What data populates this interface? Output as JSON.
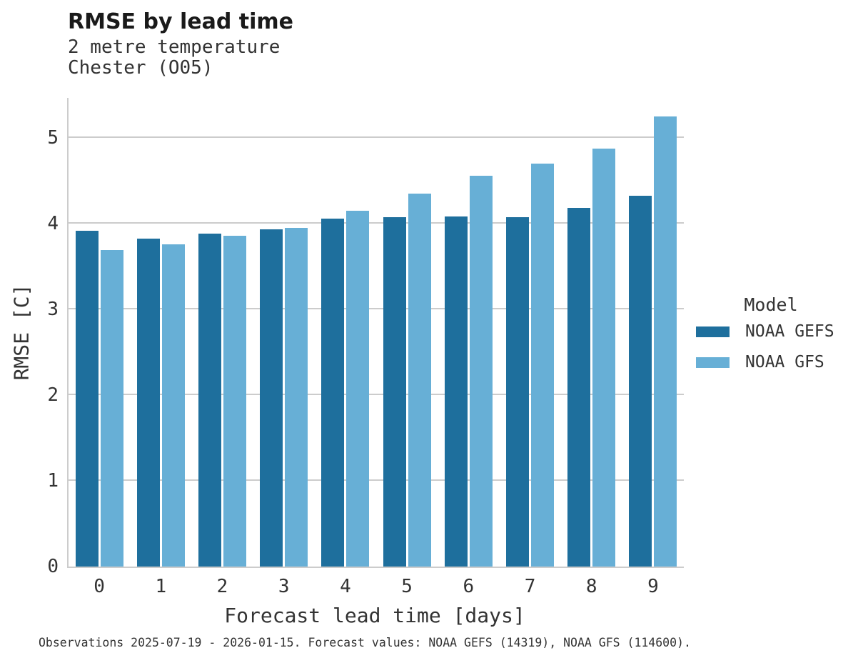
{
  "header": {
    "title": "RMSE by lead time",
    "subtitle_line1": "2 metre temperature",
    "subtitle_line2": "Chester (O05)"
  },
  "legend": {
    "title": "Model",
    "entries": [
      {
        "label": "NOAA GEFS",
        "color": "#1e6f9d"
      },
      {
        "label": "NOAA GFS",
        "color": "#67afd6"
      }
    ]
  },
  "footer": {
    "caption": "Observations 2025-07-19 - 2026-01-15. Forecast values: NOAA GEFS (14319), NOAA GFS (114600)."
  },
  "chart_data": {
    "type": "bar",
    "title": "RMSE by lead time",
    "subtitle": [
      "2 metre temperature",
      "Chester (O05)"
    ],
    "xlabel": "Forecast lead time [days]",
    "ylabel": "RMSE [C]",
    "categories": [
      "0",
      "1",
      "2",
      "3",
      "4",
      "5",
      "6",
      "7",
      "8",
      "9"
    ],
    "series": [
      {
        "name": "NOAA GEFS",
        "color": "#1e6f9d",
        "values": [
          3.92,
          3.83,
          3.89,
          3.94,
          4.06,
          4.08,
          4.09,
          4.08,
          4.19,
          4.33
        ]
      },
      {
        "name": "NOAA GFS",
        "color": "#67afd6",
        "values": [
          3.69,
          3.76,
          3.86,
          3.95,
          4.15,
          4.35,
          4.56,
          4.7,
          4.88,
          5.25
        ]
      }
    ],
    "ylim": [
      0,
      5.47
    ],
    "yticks": [
      0,
      1,
      2,
      3,
      4,
      5
    ],
    "grid": "horizontal",
    "legend_position": "right",
    "legend_title": "Model"
  },
  "colors": {
    "grid": "#cccccc",
    "spine": "#cccccc",
    "text": "#333333",
    "title_text": "#1a1a1a",
    "background": "#ffffff"
  }
}
